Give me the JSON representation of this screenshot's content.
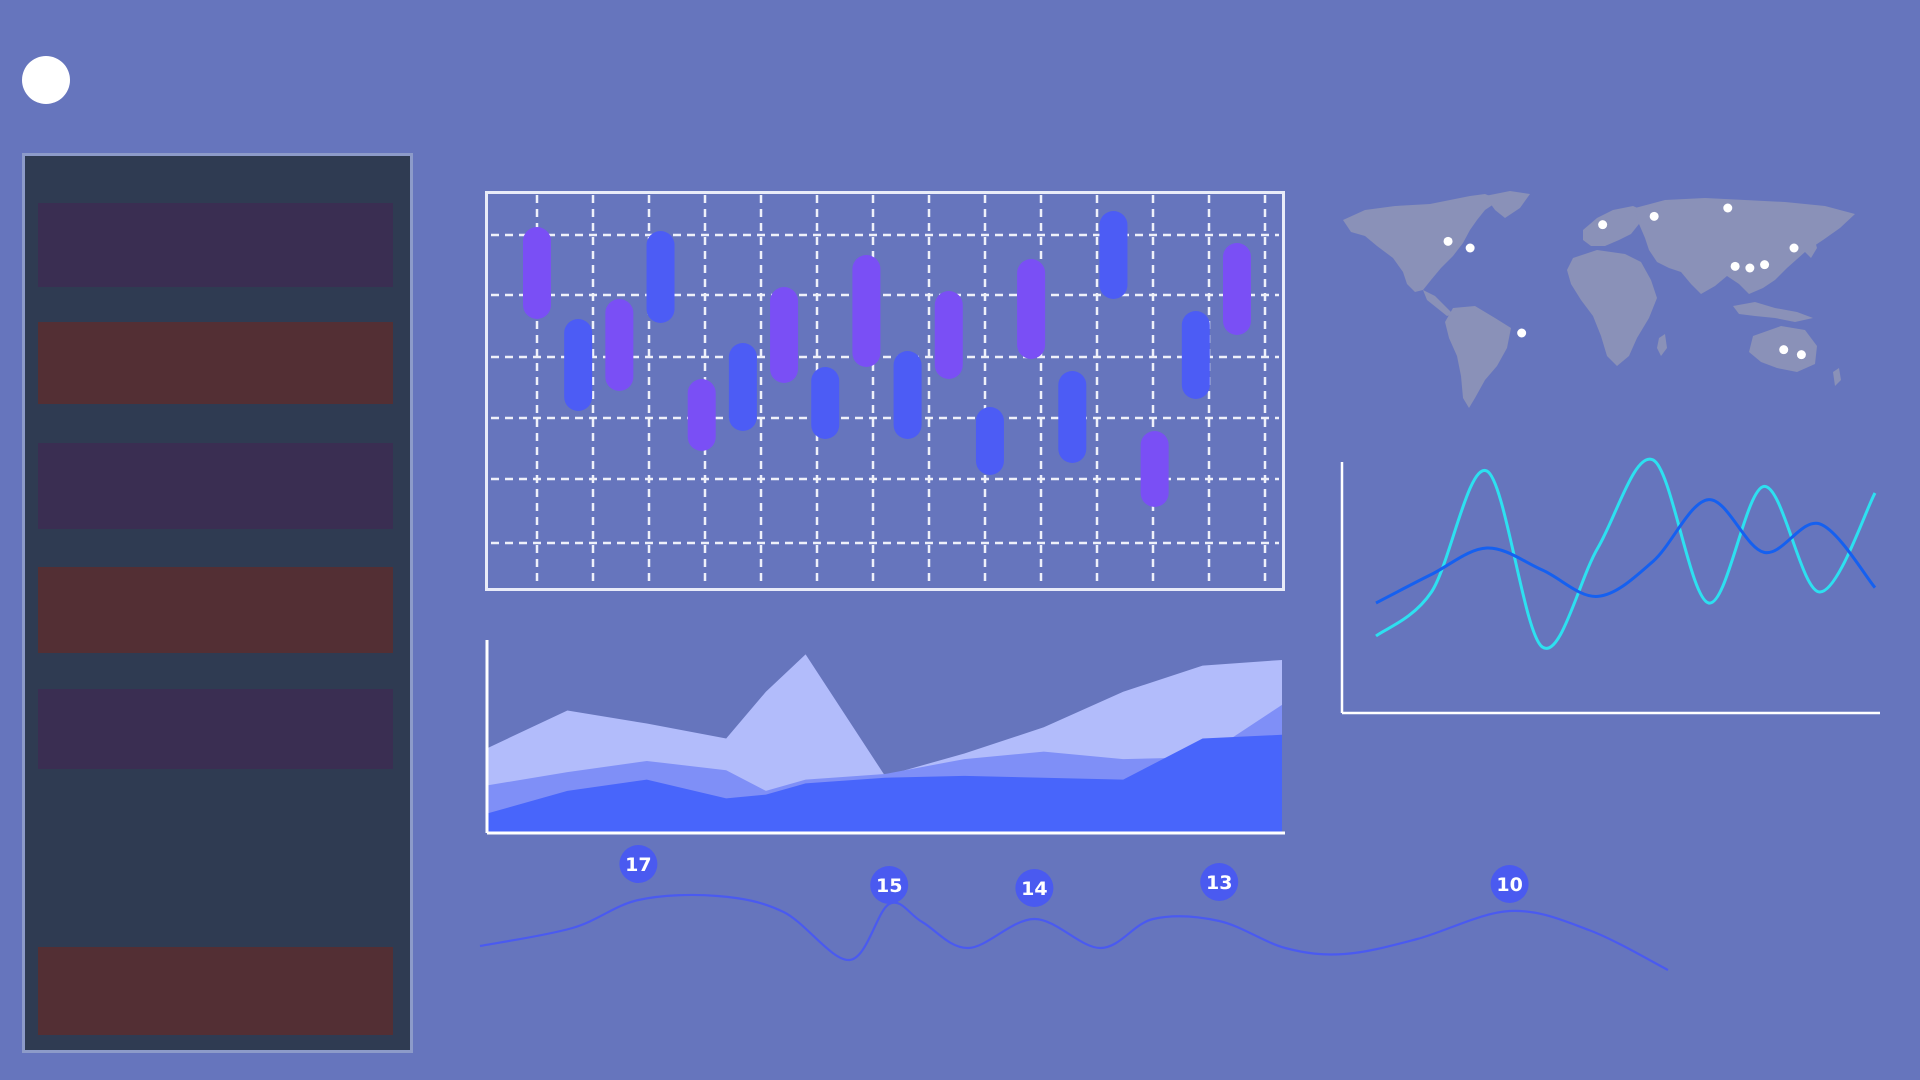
{
  "colors": {
    "background": "#6675bd",
    "sidebar_bg": "#2f3b52",
    "sidebar_border": "#8d9bc9",
    "avatar": "#ffffff",
    "candle_blue": "#4c5cf5",
    "candle_purple": "#7a4ff5",
    "area_light": "#b2bcfb",
    "area_mid": "#7f8ff7",
    "area_dark": "#4865fb",
    "wave_cyan": "#2de0f0",
    "wave_blue": "#1560f0",
    "map_land": "#8a91b8",
    "city_dot": "#ffffff",
    "seq_line": "#4a5af0",
    "seq_badge": "#4a5af0"
  },
  "sidebar": {
    "items": [
      {
        "color": "#3a2e52"
      },
      {
        "color": "#532f34"
      },
      {
        "color": "#3a2e52"
      },
      {
        "color": "#532f34"
      },
      {
        "color": "#3a2e52"
      },
      {
        "color": "#532f34"
      }
    ]
  },
  "map": {
    "cities": [
      {
        "lat": 40,
        "lon": -100
      },
      {
        "lat": 36,
        "lon": -85
      },
      {
        "lat": -15,
        "lon": -50
      },
      {
        "lat": 50,
        "lon": 5
      },
      {
        "lat": 55,
        "lon": 40
      },
      {
        "lat": 60,
        "lon": 90
      },
      {
        "lat": 25,
        "lon": 95
      },
      {
        "lat": 24,
        "lon": 105
      },
      {
        "lat": 26,
        "lon": 115
      },
      {
        "lat": 36,
        "lon": 135
      },
      {
        "lat": -25,
        "lon": 128
      },
      {
        "lat": -28,
        "lon": 140
      }
    ]
  },
  "chart_data": [
    {
      "type": "candlestick",
      "grid": true,
      "ylim": [
        0,
        10
      ],
      "candles": [
        {
          "low": 6.8,
          "high": 9.1,
          "color": "purple"
        },
        {
          "low": 4.5,
          "high": 6.8,
          "color": "blue"
        },
        {
          "low": 5.0,
          "high": 7.3,
          "color": "purple"
        },
        {
          "low": 6.7,
          "high": 9.0,
          "color": "blue"
        },
        {
          "low": 3.5,
          "high": 5.3,
          "color": "purple"
        },
        {
          "low": 4.0,
          "high": 6.2,
          "color": "blue"
        },
        {
          "low": 5.2,
          "high": 7.6,
          "color": "purple"
        },
        {
          "low": 3.8,
          "high": 5.6,
          "color": "blue"
        },
        {
          "low": 5.6,
          "high": 8.4,
          "color": "purple"
        },
        {
          "low": 3.8,
          "high": 6.0,
          "color": "blue"
        },
        {
          "low": 5.3,
          "high": 7.5,
          "color": "purple"
        },
        {
          "low": 2.9,
          "high": 4.6,
          "color": "blue"
        },
        {
          "low": 5.8,
          "high": 8.3,
          "color": "purple"
        },
        {
          "low": 3.2,
          "high": 5.5,
          "color": "blue"
        },
        {
          "low": 7.3,
          "high": 9.5,
          "color": "blue"
        },
        {
          "low": 2.1,
          "high": 4.0,
          "color": "purple"
        },
        {
          "low": 4.8,
          "high": 7.0,
          "color": "blue"
        },
        {
          "low": 6.4,
          "high": 8.7,
          "color": "purple"
        }
      ]
    },
    {
      "type": "area",
      "stacked": false,
      "x": [
        0,
        10,
        20,
        30,
        35,
        40,
        50,
        60,
        70,
        80,
        90,
        100
      ],
      "ylim": [
        0,
        100
      ],
      "series": [
        {
          "values": [
            45,
            65,
            58,
            50,
            75,
            95,
            30,
            42,
            56,
            75,
            89,
            92
          ]
        },
        {
          "values": [
            25,
            32,
            38,
            33,
            22,
            28,
            31,
            39,
            43,
            39,
            40,
            68
          ]
        },
        {
          "values": [
            10,
            22,
            28,
            18,
            20,
            26,
            29,
            30,
            29,
            28,
            50,
            52
          ]
        }
      ]
    },
    {
      "type": "line",
      "xlim": [
        0,
        100
      ],
      "ylim": [
        0,
        100
      ],
      "series": [
        {
          "values": [
            20,
            40,
            95,
            15,
            60,
            100,
            35,
            88,
            40,
            85
          ]
        },
        {
          "values": [
            35,
            48,
            60,
            50,
            38,
            54,
            82,
            58,
            71,
            42
          ]
        }
      ]
    },
    {
      "type": "line",
      "series": [
        {
          "labels": [
            "17",
            "15",
            "14",
            "13",
            "10"
          ],
          "label_x": [
            12,
            31,
            42,
            56,
            78
          ]
        }
      ]
    }
  ]
}
